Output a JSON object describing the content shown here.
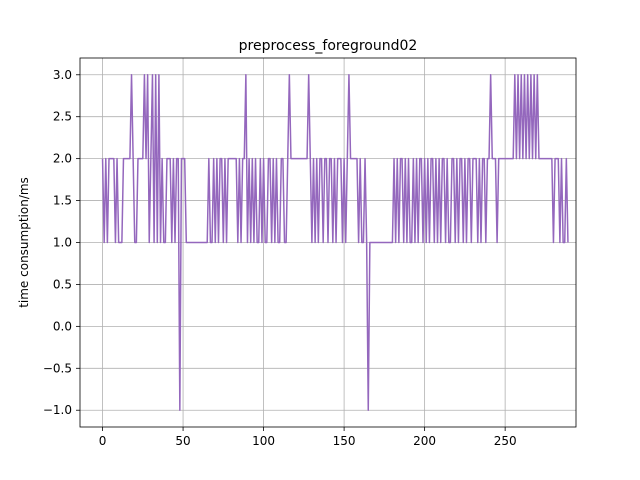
{
  "chart_data": {
    "type": "line",
    "title": "preprocess_foreground02",
    "xlabel": "",
    "ylabel": "time consumption/ms",
    "xlim": [
      -14,
      294
    ],
    "ylim": [
      -1.2,
      3.2
    ],
    "x_ticks": [
      0,
      50,
      100,
      150,
      200,
      250
    ],
    "y_ticks": [
      -1.0,
      -0.5,
      0.0,
      0.5,
      1.0,
      1.5,
      2.0,
      2.5,
      3.0
    ],
    "x_tick_labels": [
      "0",
      "50",
      "100",
      "150",
      "200",
      "250"
    ],
    "y_tick_labels": [
      "−1.0",
      "−0.5",
      "0.0",
      "0.5",
      "1.0",
      "1.5",
      "2.0",
      "2.5",
      "3.0"
    ],
    "grid": true,
    "line_color": "#9467bd",
    "series": [
      {
        "values": [
          2,
          1,
          2,
          1,
          2,
          2,
          2,
          2,
          1,
          2,
          1,
          1,
          1,
          2,
          2,
          2,
          2,
          2,
          3,
          2,
          1,
          1,
          2,
          2,
          2,
          2,
          3,
          2,
          3,
          1,
          2,
          3,
          1,
          3,
          1,
          3,
          1,
          2,
          1,
          1,
          2,
          2,
          2,
          1,
          2,
          1,
          2,
          2,
          -1,
          2,
          2,
          2,
          1,
          1,
          1,
          1,
          1,
          1,
          1,
          1,
          1,
          1,
          1,
          1,
          1,
          1,
          2,
          1,
          1,
          2,
          1,
          2,
          1,
          2,
          2,
          1,
          2,
          1,
          2,
          2,
          2,
          2,
          2,
          2,
          1,
          2,
          1,
          2,
          2,
          3,
          1,
          2,
          1,
          2,
          1,
          2,
          1,
          1,
          2,
          1,
          2,
          1,
          1,
          2,
          2,
          1,
          2,
          1,
          2,
          1,
          1,
          2,
          2,
          1,
          1,
          2,
          3,
          2,
          2,
          2,
          2,
          2,
          2,
          2,
          2,
          2,
          2,
          2,
          3,
          2,
          1,
          2,
          1,
          2,
          1,
          2,
          2,
          1,
          2,
          2,
          1,
          2,
          2,
          1,
          2,
          1,
          2,
          2,
          2,
          1,
          2,
          1,
          2,
          3,
          2,
          2,
          2,
          2,
          2,
          1,
          2,
          1,
          1,
          2,
          1,
          -1,
          1,
          1,
          1,
          1,
          1,
          1,
          1,
          1,
          1,
          1,
          1,
          1,
          1,
          1,
          1,
          2,
          1,
          2,
          1,
          2,
          2,
          1,
          2,
          1,
          2,
          1,
          1,
          2,
          1,
          2,
          1,
          2,
          2,
          1,
          2,
          1,
          2,
          1,
          2,
          2,
          1,
          2,
          1,
          2,
          1,
          2,
          2,
          1,
          2,
          1,
          1,
          2,
          2,
          1,
          2,
          1,
          2,
          2,
          1,
          2,
          1,
          2,
          2,
          1,
          2,
          2,
          2,
          1,
          2,
          1,
          2,
          2,
          1,
          2,
          2,
          3,
          2,
          2,
          2,
          1,
          2,
          2,
          2,
          2,
          2,
          2,
          2,
          2,
          2,
          2,
          3,
          2,
          3,
          2,
          3,
          2,
          3,
          2,
          3,
          2,
          3,
          2,
          3,
          2,
          3,
          2,
          2,
          2,
          2,
          2,
          2,
          2,
          2,
          2,
          1,
          2,
          2,
          2,
          1,
          2,
          1,
          1,
          2,
          1
        ]
      }
    ]
  }
}
